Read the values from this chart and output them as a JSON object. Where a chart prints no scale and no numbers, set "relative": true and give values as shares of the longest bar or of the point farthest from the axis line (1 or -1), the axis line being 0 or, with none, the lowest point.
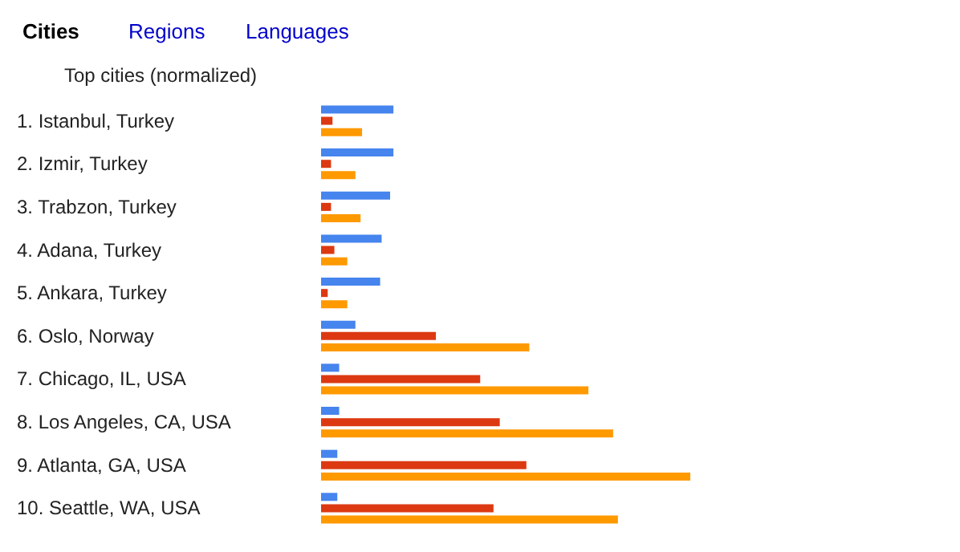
{
  "chart_data": {
    "type": "bar",
    "orientation": "horizontal",
    "relative": true,
    "legend": false,
    "grid": false,
    "title": "Top cities (normalized)",
    "annotations": [
      "Cities",
      "Regions",
      "Languages"
    ],
    "categories": [
      "1. Istanbul, Turkey",
      "2. Izmir, Turkey",
      "3. Trabzon, Turkey",
      "4. Adana, Turkey",
      "5. Ankara, Turkey",
      "6. Oslo, Norway",
      "7. Chicago, IL, USA",
      "8. Los Angeles, CA, USA",
      "9. Atlanta, GA, USA",
      "10. Seattle, WA, USA"
    ],
    "series": [
      {
        "color": "#4684ee",
        "values": [
          0.196,
          0.196,
          0.187,
          0.164,
          0.16,
          0.093,
          0.049,
          0.049,
          0.044,
          0.044
        ]
      },
      {
        "color": "#dc3912",
        "values": [
          0.031,
          0.027,
          0.027,
          0.036,
          0.018,
          0.311,
          0.431,
          0.484,
          0.556,
          0.467
        ]
      },
      {
        "color": "#ff9900",
        "values": [
          0.111,
          0.093,
          0.107,
          0.071,
          0.071,
          0.564,
          0.724,
          0.791,
          1,
          0.804
        ]
      }
    ]
  }
}
